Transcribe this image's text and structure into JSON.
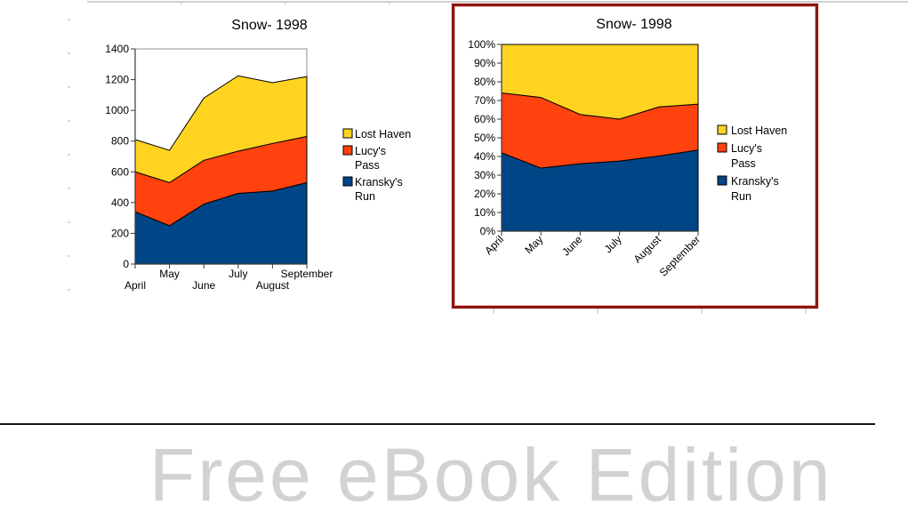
{
  "page": {
    "watermark": "Free eBook Edition"
  },
  "chart_data": [
    {
      "type": "area",
      "subtype": "stacked",
      "title": "Snow- 1998",
      "categories": [
        "April",
        "May",
        "June",
        "July",
        "August",
        "September"
      ],
      "series": [
        {
          "name": "Kransky's Run",
          "color": "#004586",
          "values": [
            340,
            250,
            390,
            460,
            475,
            530
          ]
        },
        {
          "name": "Lucy's Pass",
          "color": "#FF420E",
          "values": [
            260,
            280,
            285,
            275,
            310,
            300
          ]
        },
        {
          "name": "Lost Haven",
          "color": "#FFD320",
          "values": [
            210,
            210,
            405,
            490,
            395,
            390
          ]
        }
      ],
      "xlabel": "",
      "ylabel": "",
      "ylim": [
        0,
        1400
      ],
      "yticks": [
        "0",
        "200",
        "400",
        "600",
        "800",
        "1000",
        "1200",
        "1400"
      ],
      "grid": false,
      "legend_position": "right",
      "legend_order": [
        "Lost Haven",
        "Lucy's Pass",
        "Kransky's Run"
      ],
      "x_label_layout": "staggered"
    },
    {
      "type": "area",
      "subtype": "percent-stacked",
      "title": "Snow- 1998",
      "categories": [
        "April",
        "May",
        "June",
        "July",
        "August",
        "September"
      ],
      "series": [
        {
          "name": "Kransky's Run",
          "color": "#004586",
          "values": [
            340,
            250,
            390,
            460,
            475,
            530
          ]
        },
        {
          "name": "Lucy's Pass",
          "color": "#FF420E",
          "values": [
            260,
            280,
            285,
            275,
            310,
            300
          ]
        },
        {
          "name": "Lost Haven",
          "color": "#FFD320",
          "values": [
            210,
            210,
            405,
            490,
            395,
            390
          ]
        }
      ],
      "xlabel": "",
      "ylabel": "",
      "ylim": [
        0,
        100
      ],
      "yticks": [
        "0%",
        "10%",
        "20%",
        "30%",
        "40%",
        "50%",
        "60%",
        "70%",
        "80%",
        "90%",
        "100%"
      ],
      "grid": false,
      "legend_position": "right",
      "legend_order": [
        "Lost Haven",
        "Lucy's Pass",
        "Kransky's Run"
      ],
      "x_label_layout": "rotated-45",
      "selected": true,
      "selection_border_color": "#8C1410"
    }
  ]
}
